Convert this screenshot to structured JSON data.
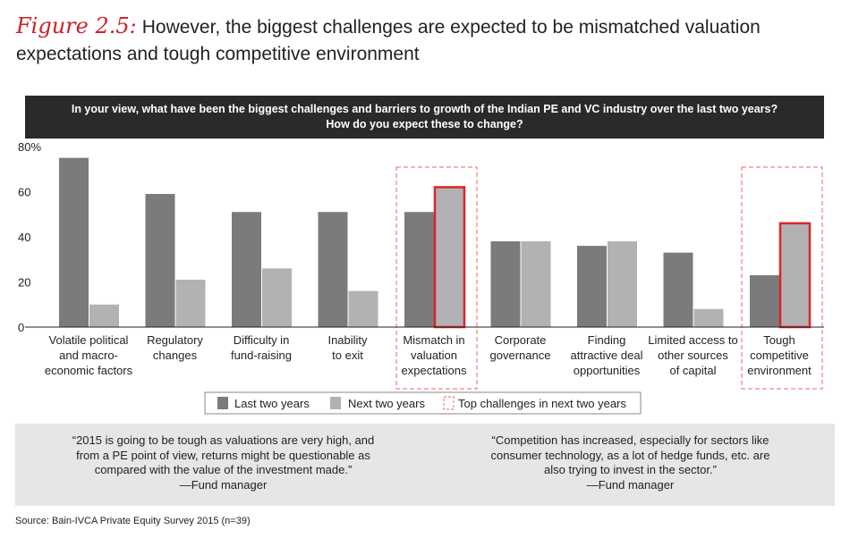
{
  "figure": {
    "label": "Figure 2.5:",
    "title": "However, the biggest challenges are expected to be mismatched valuation expectations and tough competitive environment"
  },
  "question": {
    "line1": "In your view, what have been the biggest challenges and barriers to growth of the Indian PE and VC industry over the last two years?",
    "line2": "How do you expect these to change?"
  },
  "chart_data": {
    "type": "bar",
    "categories": [
      [
        "Volatile political",
        "and macro-",
        "economic factors"
      ],
      [
        "Regulatory",
        "changes"
      ],
      [
        "Difficulty in",
        "fund-raising"
      ],
      [
        "Inability",
        "to exit"
      ],
      [
        "Mismatch in",
        "valuation",
        "expectations"
      ],
      [
        "Corporate",
        "governance"
      ],
      [
        "Finding",
        "attractive deal",
        "opportunities"
      ],
      [
        "Limited access to",
        "other sources",
        "of capital"
      ],
      [
        "Tough",
        "competitive",
        "environment"
      ]
    ],
    "series": [
      {
        "name": "Last two years",
        "color": "#7b7b7d",
        "values": [
          75,
          59,
          51,
          51,
          51,
          38,
          36,
          33,
          23
        ]
      },
      {
        "name": "Next two years",
        "color": "#b2b2b4",
        "values": [
          10,
          21,
          26,
          16,
          62,
          38,
          38,
          8,
          46
        ]
      }
    ],
    "highlighted_categories": [
      4,
      8
    ],
    "highlight_series": 1,
    "highlight_color": "#d9262a",
    "y_ticks": [
      {
        "value": 0,
        "label": "0"
      },
      {
        "value": 20,
        "label": "20"
      },
      {
        "value": 40,
        "label": "40"
      },
      {
        "value": 60,
        "label": "60"
      },
      {
        "value": 80,
        "label": "80%"
      }
    ],
    "ylim": [
      0,
      80
    ],
    "grid": false,
    "legend": {
      "placement": "bottom-center",
      "items": [
        {
          "label": "Last two years",
          "swatch": "last"
        },
        {
          "label": "Next two years",
          "swatch": "next"
        },
        {
          "label": "Top challenges in next two years",
          "swatch": "highlight"
        }
      ]
    }
  },
  "quotes": [
    {
      "lines": [
        "“2015 is going to be tough as valuations are very high, and",
        "from a PE point of view, returns might be questionable as",
        "compared with the value of the investment made.”"
      ],
      "attribution": "—Fund manager"
    },
    {
      "lines": [
        "“Competition has increased, especially for sectors like",
        "consumer technology, as a lot of hedge funds, etc. are",
        "also trying to invest in the sector.”"
      ],
      "attribution": "—Fund manager"
    }
  ],
  "source": "Source: Bain-IVCA Private Equity Survey 2015 (n=39)"
}
